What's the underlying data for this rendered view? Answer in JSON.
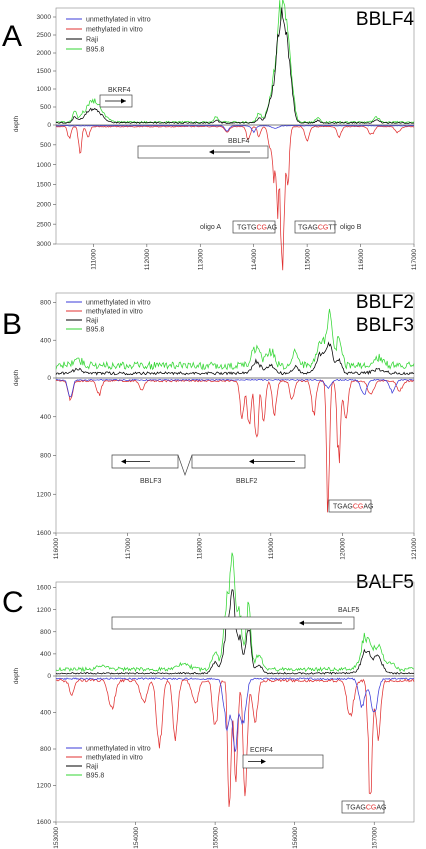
{
  "figure": {
    "panels": [
      {
        "label": "A",
        "titles": [
          "BBLF4"
        ],
        "ylabel": "depth",
        "legend": [
          "unmethylated in vitro",
          "methylated in vitro",
          "Raji",
          "B95.8"
        ],
        "genes": [
          "BKRF4",
          "BBLF4"
        ],
        "oligo_a_label": "oligo A",
        "oligo_b_label": "oligo B",
        "motif_a": [
          "TGTG",
          "CG",
          "AG"
        ],
        "motif_b": [
          "TGAG",
          "CG",
          "TT"
        ]
      },
      {
        "label": "B",
        "titles": [
          "BBLF2",
          "BBLF3"
        ],
        "ylabel": "depth",
        "legend": [
          "unmethylated in vitro",
          "methylated in vitro",
          "Raji",
          "B95.8"
        ],
        "genes": [
          "BBLF3",
          "BBLF2"
        ],
        "motif": [
          "TGAG",
          "CG",
          "AG"
        ]
      },
      {
        "label": "C",
        "titles": [
          "BALF5"
        ],
        "ylabel": "depth",
        "legend": [
          "unmethylated in vitro",
          "methylated in vitro",
          "Raji",
          "B95.8"
        ],
        "genes": [
          "BALF5",
          "ECRF4"
        ],
        "motif": [
          "TGAG",
          "CG",
          "AG"
        ]
      }
    ]
  },
  "chart_data": [
    {
      "type": "line",
      "title": "BBLF4",
      "ylabel": "depth",
      "xlim": [
        110300,
        117000
      ],
      "x_ticks": [
        111000,
        112000,
        113000,
        114000,
        115000,
        116000,
        117000
      ],
      "y_up_ticks": [
        0,
        500,
        1000,
        1500,
        2000,
        2500,
        3000
      ],
      "y_down_ticks": [
        500,
        1000,
        1500,
        2000,
        2500,
        3000
      ],
      "ylim_up": [
        0,
        3250
      ],
      "ylim_down": [
        0,
        3000
      ],
      "colors": {
        "unmethylated in vitro": "#3b3bd8",
        "methylated in vitro": "#e03030",
        "Raji": "#000000",
        "B95.8": "#33d633"
      },
      "series": [
        {
          "name": "B95.8",
          "side": "up",
          "baseline": 80,
          "peaks": [
            [
              110650,
              250,
              35
            ],
            [
              111000,
              600,
              150
            ],
            [
              113300,
              150,
              40
            ],
            [
              114100,
              250,
              40
            ],
            [
              114350,
              800,
              80
            ],
            [
              114500,
              2800,
              70
            ],
            [
              114620,
              1800,
              60
            ],
            [
              114700,
              800,
              60
            ],
            [
              115200,
              120,
              40
            ],
            [
              116300,
              150,
              50
            ]
          ]
        },
        {
          "name": "Raji",
          "side": "up",
          "baseline": 60,
          "peaks": [
            [
              110650,
              150,
              35
            ],
            [
              111000,
              380,
              150
            ],
            [
              113300,
              80,
              40
            ],
            [
              114100,
              120,
              40
            ],
            [
              114350,
              700,
              80
            ],
            [
              114500,
              2700,
              65
            ],
            [
              114620,
              1600,
              55
            ],
            [
              114700,
              700,
              55
            ],
            [
              115200,
              60,
              40
            ],
            [
              116300,
              80,
              50
            ]
          ]
        },
        {
          "name": "methylated in vitro",
          "side": "down",
          "baseline": 40,
          "peaks": [
            [
              110550,
              300,
              30
            ],
            [
              110750,
              650,
              30
            ],
            [
              110900,
              300,
              30
            ],
            [
              113500,
              150,
              40
            ],
            [
              113900,
              350,
              35
            ],
            [
              114100,
              250,
              30
            ],
            [
              114300,
              500,
              35
            ],
            [
              114380,
              1200,
              30
            ],
            [
              114450,
              1900,
              25
            ],
            [
              114520,
              2600,
              25
            ],
            [
              114560,
              2100,
              25
            ],
            [
              114640,
              1300,
              30
            ],
            [
              115000,
              350,
              40
            ],
            [
              115600,
              250,
              40
            ],
            [
              116200,
              200,
              50
            ],
            [
              116700,
              150,
              50
            ]
          ]
        },
        {
          "name": "unmethylated in vitro",
          "side": "down",
          "baseline": 20,
          "peaks": [
            [
              113500,
              120,
              40
            ],
            [
              114000,
              150,
              40
            ],
            [
              114400,
              60,
              60
            ]
          ]
        }
      ],
      "annotations": [
        "BKRF4",
        "BBLF4",
        "oligo A",
        "oligo B"
      ]
    },
    {
      "type": "line",
      "title": "BBLF2 / BBLF3",
      "ylabel": "depth",
      "xlim": [
        116000,
        121000
      ],
      "x_ticks": [
        116000,
        117000,
        118000,
        119000,
        120000,
        121000
      ],
      "y_up_ticks": [
        0,
        400,
        800
      ],
      "y_down_ticks": [
        400,
        800,
        1200,
        1600
      ],
      "ylim_up": [
        0,
        900
      ],
      "ylim_down": [
        0,
        1600
      ],
      "colors": {
        "unmethylated in vitro": "#3b3bd8",
        "methylated in vitro": "#e03030",
        "Raji": "#000000",
        "B95.8": "#33d633"
      },
      "series": [
        {
          "name": "B95.8",
          "side": "up",
          "baseline": 130,
          "peaks": [
            [
              116300,
              60,
              80
            ],
            [
              118800,
              200,
              60
            ],
            [
              119000,
              160,
              50
            ],
            [
              119350,
              150,
              40
            ],
            [
              119700,
              250,
              60
            ],
            [
              119820,
              500,
              40
            ],
            [
              119950,
              280,
              40
            ],
            [
              120500,
              80,
              80
            ]
          ]
        },
        {
          "name": "Raji",
          "side": "up",
          "baseline": 50,
          "peaks": [
            [
              116300,
              40,
              80
            ],
            [
              118800,
              120,
              60
            ],
            [
              119000,
              80,
              50
            ],
            [
              119350,
              70,
              40
            ],
            [
              119700,
              200,
              60
            ],
            [
              119820,
              300,
              40
            ],
            [
              119950,
              150,
              40
            ],
            [
              120500,
              40,
              80
            ]
          ]
        },
        {
          "name": "methylated in vitro",
          "side": "down",
          "baseline": 30,
          "peaks": [
            [
              116200,
              200,
              30
            ],
            [
              116600,
              150,
              30
            ],
            [
              117200,
              100,
              30
            ],
            [
              118600,
              350,
              30
            ],
            [
              118700,
              500,
              25
            ],
            [
              118800,
              650,
              25
            ],
            [
              118900,
              420,
              25
            ],
            [
              119050,
              320,
              30
            ],
            [
              119300,
              200,
              30
            ],
            [
              119600,
              350,
              30
            ],
            [
              119800,
              1350,
              20
            ],
            [
              119950,
              800,
              25
            ],
            [
              120050,
              400,
              30
            ],
            [
              120400,
              150,
              40
            ],
            [
              120800,
              100,
              40
            ]
          ]
        },
        {
          "name": "unmethylated in vitro",
          "side": "down",
          "baseline": 20,
          "peaks": [
            [
              116200,
              200,
              30
            ],
            [
              119800,
              80,
              40
            ],
            [
              120300,
              150,
              40
            ],
            [
              120700,
              120,
              40
            ]
          ]
        }
      ],
      "annotations": [
        "BBLF3",
        "BBLF2"
      ]
    },
    {
      "type": "line",
      "title": "BALF5",
      "ylabel": "depth",
      "xlim": [
        153000,
        157500
      ],
      "x_ticks": [
        153000,
        154000,
        155000,
        156000,
        157000
      ],
      "y_up_ticks": [
        0,
        400,
        800,
        1200,
        1600
      ],
      "y_down_ticks": [
        400,
        800,
        1200,
        1600
      ],
      "ylim_up": [
        0,
        1700
      ],
      "ylim_down": [
        0,
        1600
      ],
      "colors": {
        "unmethylated in vitro": "#3b3bd8",
        "methylated in vitro": "#e03030",
        "Raji": "#000000",
        "B95.8": "#33d633"
      },
      "series": [
        {
          "name": "B95.8",
          "side": "up",
          "baseline": 120,
          "peaks": [
            [
              153600,
              60,
              80
            ],
            [
              154600,
              100,
              80
            ],
            [
              155000,
              300,
              40
            ],
            [
              155150,
              1200,
              40
            ],
            [
              155220,
              1500,
              30
            ],
            [
              155300,
              1000,
              40
            ],
            [
              155420,
              1100,
              30
            ],
            [
              155550,
              250,
              40
            ],
            [
              156900,
              600,
              60
            ],
            [
              157050,
              420,
              50
            ],
            [
              157200,
              120,
              50
            ]
          ]
        },
        {
          "name": "Raji",
          "side": "up",
          "baseline": 50,
          "peaks": [
            [
              155000,
              200,
              40
            ],
            [
              155150,
              800,
              40
            ],
            [
              155220,
              1100,
              30
            ],
            [
              155300,
              650,
              40
            ],
            [
              155420,
              900,
              30
            ],
            [
              155550,
              150,
              40
            ],
            [
              156900,
              400,
              60
            ],
            [
              157050,
              300,
              50
            ]
          ]
        },
        {
          "name": "methylated in vitro",
          "side": "down",
          "baseline": 50,
          "peaks": [
            [
              153200,
              150,
              30
            ],
            [
              153700,
              300,
              40
            ],
            [
              154100,
              250,
              40
            ],
            [
              154300,
              700,
              35
            ],
            [
              154500,
              600,
              30
            ],
            [
              154750,
              250,
              40
            ],
            [
              155000,
              550,
              30
            ],
            [
              155180,
              1500,
              20
            ],
            [
              155260,
              1000,
              25
            ],
            [
              155380,
              1250,
              25
            ],
            [
              155500,
              500,
              30
            ],
            [
              156700,
              400,
              40
            ],
            [
              156950,
              1250,
              25
            ],
            [
              157050,
              600,
              30
            ]
          ]
        },
        {
          "name": "unmethylated in vitro",
          "side": "down",
          "baseline": 30,
          "peaks": [
            [
              155150,
              500,
              40
            ],
            [
              155250,
              750,
              30
            ],
            [
              155350,
              450,
              40
            ],
            [
              156850,
              300,
              40
            ],
            [
              157000,
              400,
              40
            ]
          ]
        }
      ],
      "annotations": [
        "BALF5",
        "ECRF4"
      ]
    }
  ]
}
